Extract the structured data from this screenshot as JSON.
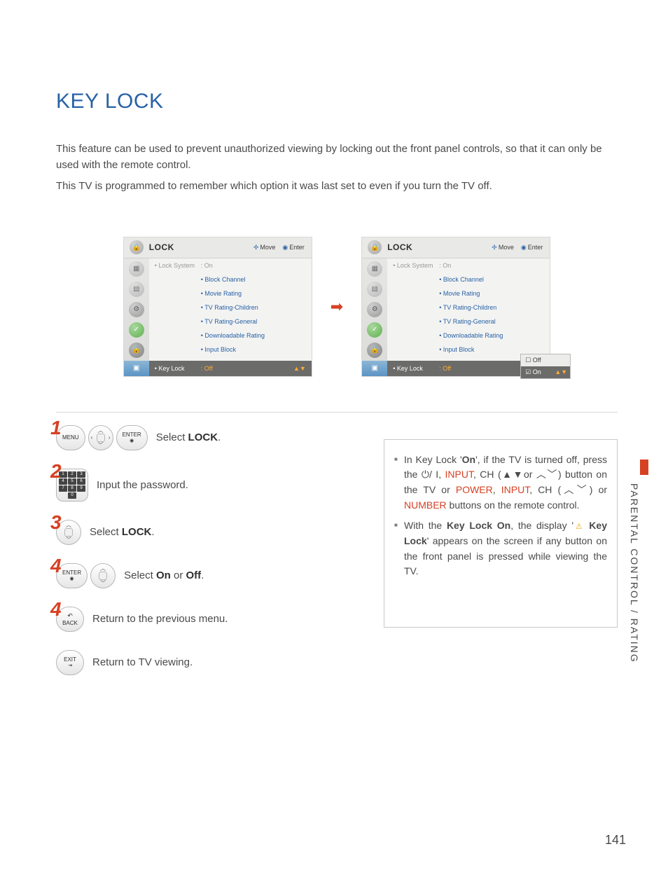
{
  "title": "KEY LOCK",
  "intro1": "This feature can be used to prevent unauthorized viewing by locking out the front panel controls, so that it can only be used with the remote control.",
  "intro2": "This TV is programmed to remember which option it was last set to even if you turn the TV off.",
  "panel": {
    "title": "LOCK",
    "hint_move": "Move",
    "hint_enter": "Enter",
    "items": {
      "lock_system_label": "Lock System",
      "lock_system_value": ": On",
      "block_channel": "• Block Channel",
      "movie_rating": "• Movie Rating",
      "tv_children": "• TV Rating-Children",
      "tv_general": "• TV Rating-General",
      "downloadable": "• Downloadable Rating",
      "input_block": "• Input Block",
      "key_lock_label": "Key Lock",
      "key_lock_value": ": Off"
    },
    "popup": {
      "off": "Off",
      "on": "On"
    }
  },
  "steps": {
    "s1": {
      "btn_menu": "MENU",
      "btn_enter": "ENTER",
      "text_a": "Select ",
      "text_b": "LOCK",
      "text_c": "."
    },
    "s2": {
      "text": "Input the password."
    },
    "s3": {
      "text_a": "Select ",
      "text_b": "LOCK",
      "text_c": "."
    },
    "s4": {
      "btn_enter": "ENTER",
      "text_a": "Select ",
      "text_b1": "On",
      "text_mid": " or ",
      "text_b2": "Off",
      "text_c": "."
    },
    "s5": {
      "btn_back": "BACK",
      "text": "Return to the previous menu."
    },
    "s6": {
      "btn_exit": "EXIT",
      "text": "Return to TV viewing."
    }
  },
  "notes": {
    "n1_a": "In Key Lock '",
    "n1_b": "On",
    "n1_c": "', if the TV is turned off, press the ",
    "n1_power": "⏻",
    "n1_d": "/ I, ",
    "n1_input": "INPUT",
    "n1_e": ", CH (▲▼or ︿﹀) button on the TV or ",
    "n1_power2": "POWER",
    "n1_f": ", ",
    "n1_input2": "INPUT",
    "n1_g": ", CH (︿﹀) or ",
    "n1_number": "NUMBER",
    "n1_h": " buttons on the remote control.",
    "n2_a": "With the ",
    "n2_b": "Key Lock On",
    "n2_c": ", the display '",
    "n2_warn": "⚠",
    "n2_d": " Key Lock",
    "n2_e": "' appears on the screen if any button on the front panel is pressed while viewing the TV."
  },
  "side_label": "PARENTAL CONTROL / RATING",
  "page_number": "141",
  "colors": {
    "accent_red": "#d64123",
    "accent_blue": "#2862a5",
    "accent_orange": "#ffad33",
    "text_gray": "#4a4a4a"
  }
}
